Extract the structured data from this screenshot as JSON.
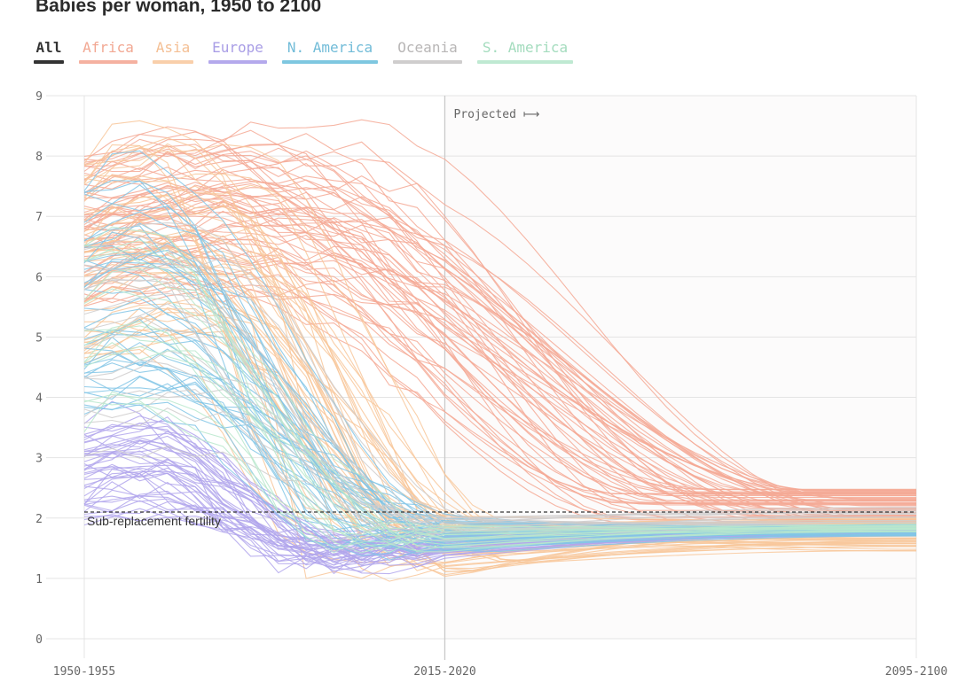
{
  "title": "Babies per woman, 1950 to 2100",
  "filters": [
    {
      "label": "All",
      "color": "#333333",
      "text_color": "#333333",
      "active": true
    },
    {
      "label": "Africa",
      "color": "#f5b1a0",
      "text_color": "#f2a893"
    },
    {
      "label": "Asia",
      "color": "#f9cfaa",
      "text_color": "#f4bf94"
    },
    {
      "label": "Europe",
      "color": "#b4a9ec",
      "text_color": "#a99ee6"
    },
    {
      "label": "N. America",
      "color": "#7ec7e0",
      "text_color": "#72bcd8"
    },
    {
      "label": "Oceania",
      "color": "#cfcdcd",
      "text_color": "#b8b6b6"
    },
    {
      "label": "S. America",
      "color": "#bfe9d2",
      "text_color": "#a4dcbe"
    }
  ],
  "chart_data": {
    "type": "line",
    "title": "Babies per woman, 1950 to 2100",
    "x_ticks": [
      "1950-1955",
      "2015-2020",
      "2095-2100"
    ],
    "x_range": [
      1950,
      2100
    ],
    "ylim": [
      0,
      9
    ],
    "y_ticks": [
      "0",
      "1",
      "2",
      "3",
      "4",
      "5",
      "6",
      "7",
      "8",
      "9"
    ],
    "grid": true,
    "projection_start": 2015,
    "projection_label": "Projected ⟼",
    "reference_line": {
      "value": 2.1,
      "label": "Sub-replacement fertility",
      "style": "dashed"
    },
    "series_groups": [
      {
        "region": "Africa",
        "color": "#f5a995",
        "count": 58,
        "start_range": [
          5.5,
          8.0
        ],
        "peak_year_range": [
          1960,
          2000
        ],
        "end_range": [
          1.9,
          2.5
        ]
      },
      {
        "region": "Asia",
        "color": "#f8c79a",
        "count": 48,
        "start_range": [
          4.5,
          8.0
        ],
        "peak_year_range": [
          1955,
          1980
        ],
        "end_range": [
          1.45,
          2.0
        ]
      },
      {
        "region": "Europe",
        "color": "#b1a6ec",
        "count": 42,
        "start_range": [
          1.8,
          3.6
        ],
        "peak_year_range": [
          1955,
          1965
        ],
        "end_range": [
          1.7,
          1.85
        ]
      },
      {
        "region": "N. America",
        "color": "#82c6e6",
        "count": 36,
        "start_range": [
          3.5,
          7.6
        ],
        "peak_year_range": [
          1955,
          1965
        ],
        "end_range": [
          1.7,
          1.9
        ]
      },
      {
        "region": "Oceania",
        "color": "#cfcdcd",
        "count": 16,
        "start_range": [
          3.0,
          7.2
        ],
        "peak_year_range": [
          1955,
          1975
        ],
        "end_range": [
          1.8,
          2.2
        ]
      },
      {
        "region": "S. America",
        "color": "#b9e7cd",
        "count": 14,
        "start_range": [
          3.5,
          7.0
        ],
        "peak_year_range": [
          1955,
          1965
        ],
        "end_range": [
          1.7,
          1.9
        ]
      }
    ]
  }
}
